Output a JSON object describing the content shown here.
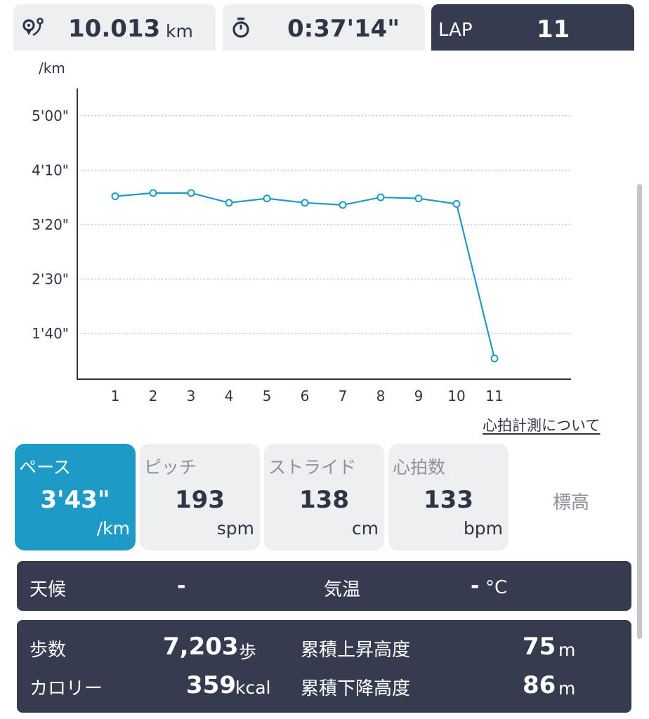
{
  "summary": {
    "distance_value": "10.013",
    "distance_unit": "km",
    "distance_icon": "route-pin-icon",
    "time_value": "0:37'14\"",
    "time_icon": "stopwatch-icon",
    "lap_label": "LAP",
    "lap_value": "11"
  },
  "chart_data": {
    "type": "line",
    "ylabel": "/km",
    "x": [
      1,
      2,
      3,
      4,
      5,
      6,
      7,
      8,
      9,
      10,
      11
    ],
    "x_tick_labels": [
      "1",
      "2",
      "3",
      "4",
      "5",
      "6",
      "7",
      "8",
      "9",
      "10",
      "11"
    ],
    "values_seconds_per_km": [
      226,
      229,
      229,
      220,
      224,
      220,
      218,
      225,
      224,
      219,
      77
    ],
    "y_ticks_seconds_per_km": [
      100,
      150,
      200,
      250,
      300
    ],
    "y_tick_labels": [
      "1'40\"",
      "2'30\"",
      "3'20\"",
      "4'10\"",
      "5'00\""
    ],
    "y_axis_inverted": true,
    "ylim": [
      325,
      58
    ],
    "grid": true,
    "color": "#1e9ac7"
  },
  "heart_rate_link": "心拍計測について",
  "metrics": [
    {
      "label": "ペース",
      "value": "3'43\"",
      "unit": "/km",
      "active": true
    },
    {
      "label": "ピッチ",
      "value": "193",
      "unit": "spm",
      "active": false
    },
    {
      "label": "ストライド",
      "value": "138",
      "unit": "cm",
      "active": false
    },
    {
      "label": "心拍数",
      "value": "133",
      "unit": "bpm",
      "active": false
    }
  ],
  "elevation_label": "標高",
  "weather": {
    "weather_label": "天候",
    "weather_value": "-",
    "temp_label": "気温",
    "temp_value": "-",
    "temp_unit": "°C"
  },
  "stats": {
    "steps_label": "歩数",
    "steps_value": "7,203",
    "steps_unit": "歩",
    "calories_label": "カロリー",
    "calories_value": "359",
    "calories_unit": "kcal",
    "ascent_label": "累積上昇高度",
    "ascent_value": "75",
    "ascent_unit": "m",
    "descent_label": "累積下降高度",
    "descent_value": "86",
    "descent_unit": "m"
  },
  "colors": {
    "accent": "#1e9ac7",
    "dark_panel": "#363c50",
    "card_bg": "#eeeff1"
  }
}
